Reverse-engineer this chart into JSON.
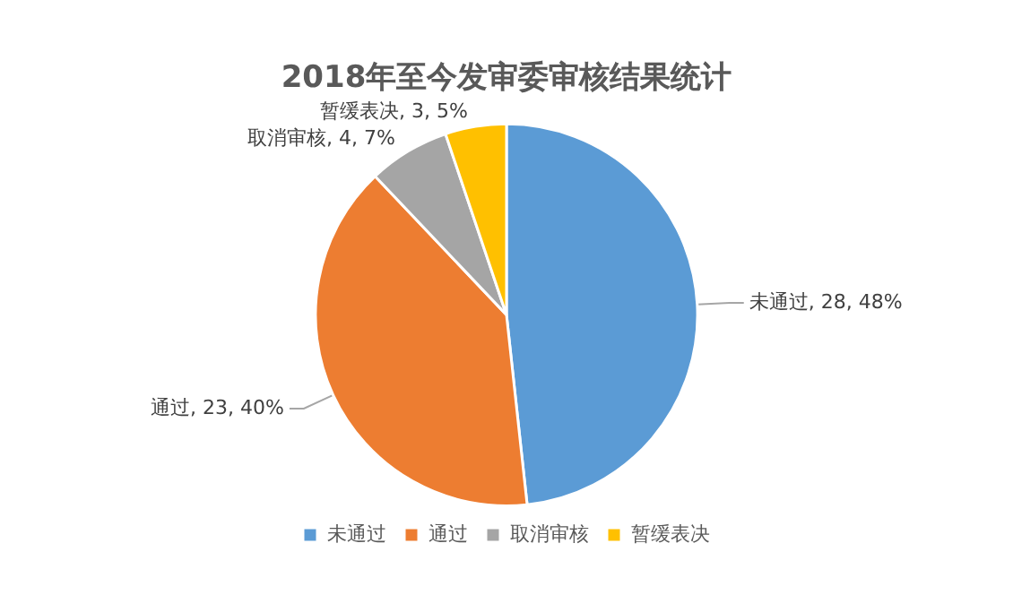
{
  "chart_data": {
    "type": "pie",
    "title": "2018年至今发审委审核结果统计",
    "categories": [
      "未通过",
      "通过",
      "取消审核",
      "暂缓表决"
    ],
    "values": [
      28,
      23,
      4,
      3
    ],
    "colors": [
      "#5b9bd5",
      "#ed7d31",
      "#a5a5a5",
      "#ffc000"
    ],
    "value_labels": [
      "未通过, 28, 48%",
      "通过, 23, 40%",
      "取消审核, 4, 7%",
      "暂缓表决, 3, 5%"
    ],
    "legend": "bottom"
  }
}
